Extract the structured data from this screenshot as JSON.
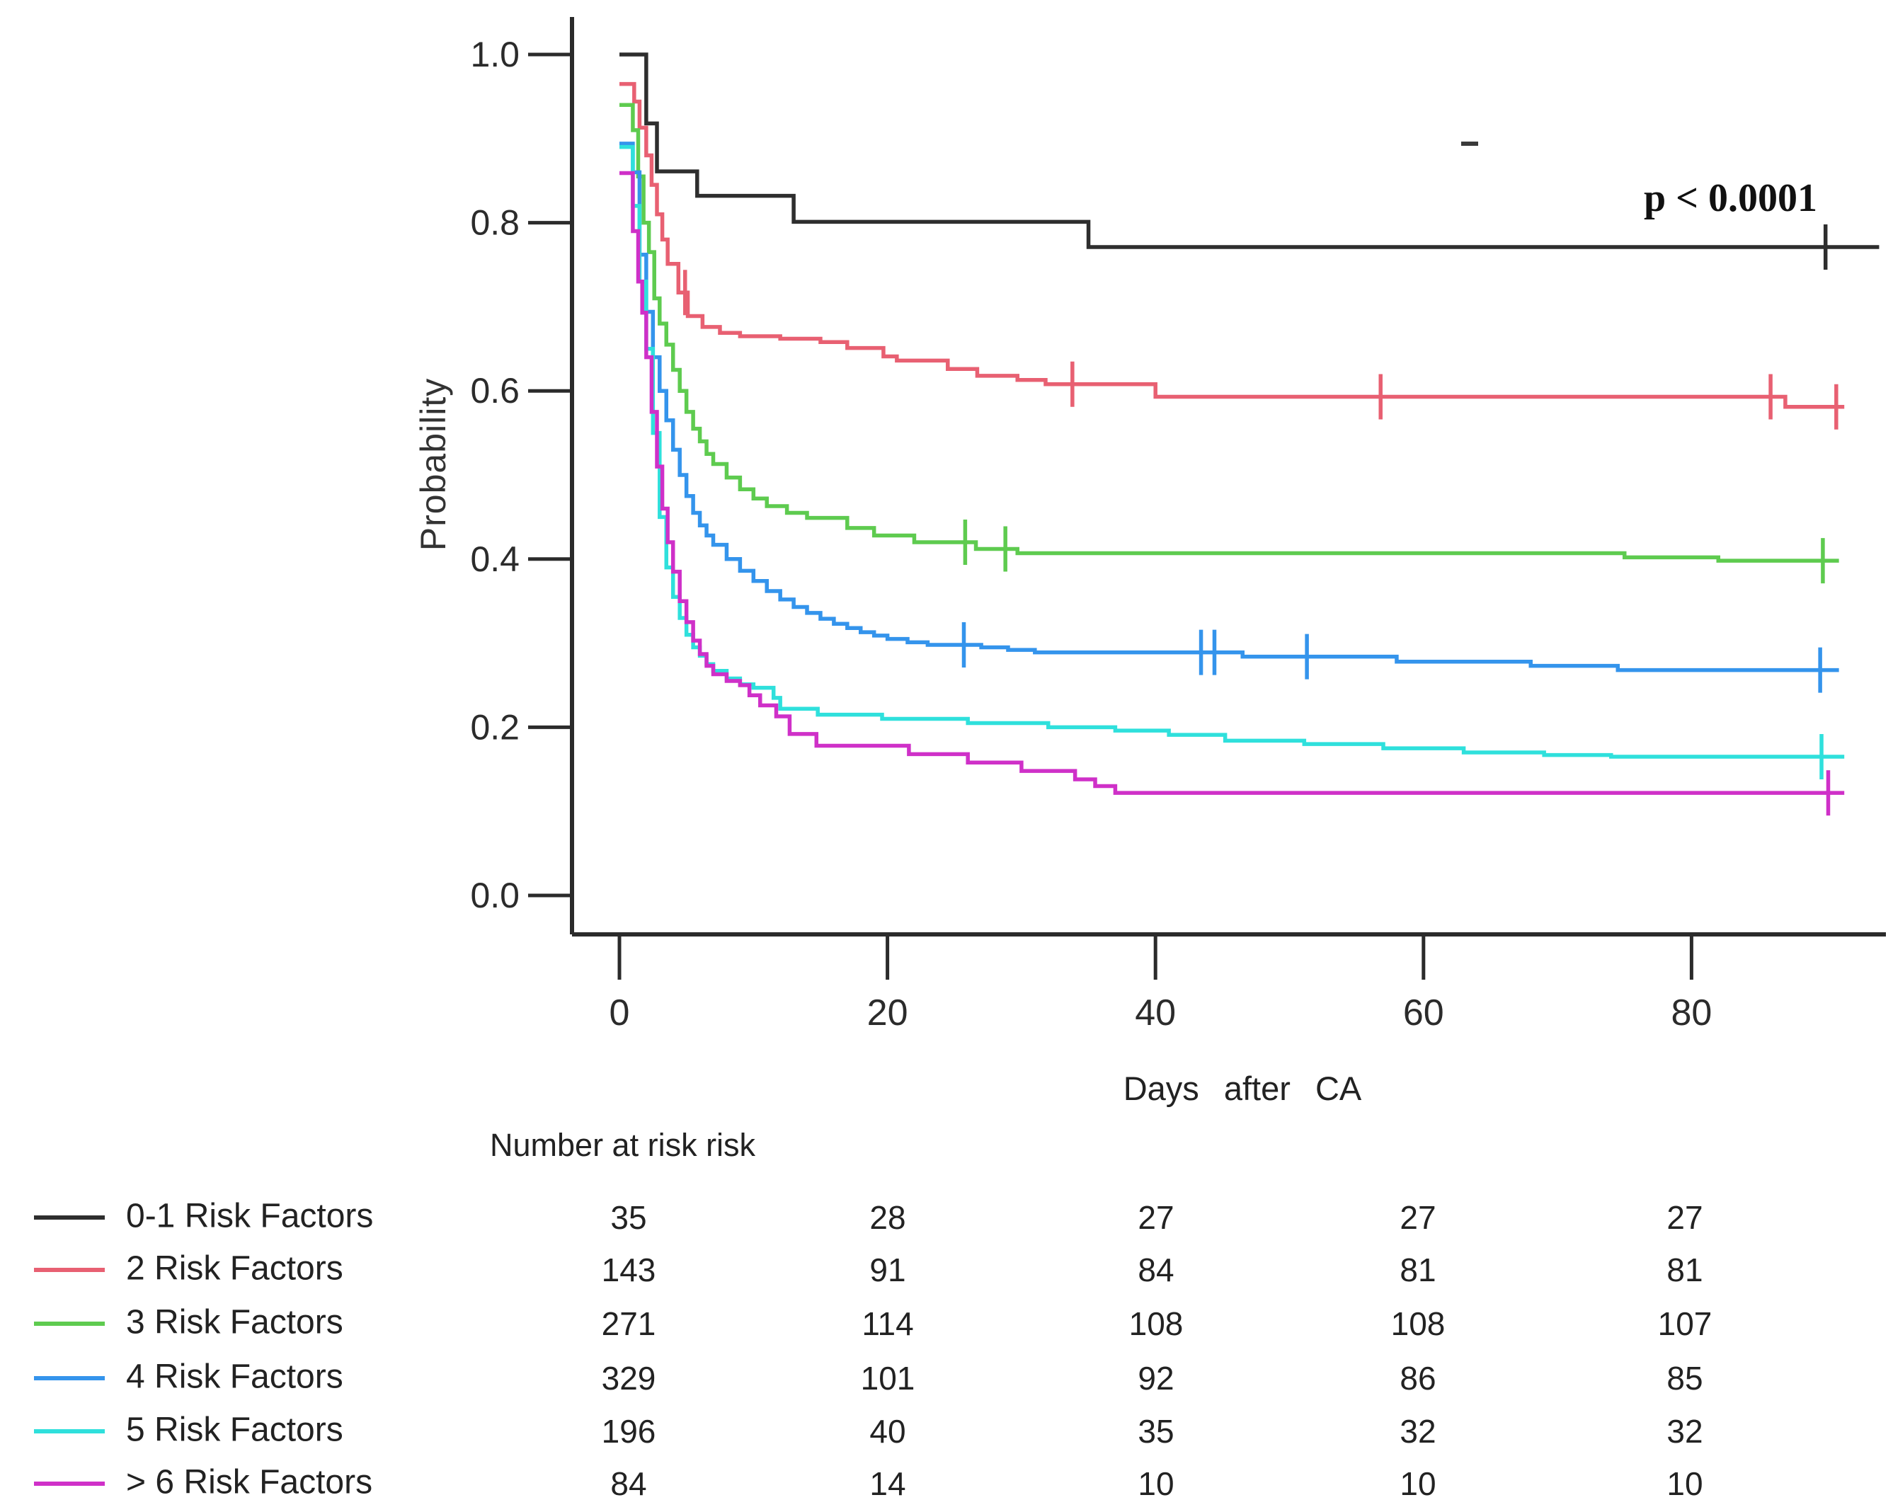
{
  "chart_data": {
    "type": "line",
    "subtype": "kaplan-meier-step-survival",
    "title": "",
    "xlabel": "Days  after  CA",
    "ylabel": "Probability",
    "annotation_p_value": "p < 0.0001",
    "xlim": [
      0,
      95
    ],
    "ylim": [
      0.0,
      1.0
    ],
    "xticks": [
      0,
      20,
      40,
      60,
      80
    ],
    "yticks": [
      0.0,
      0.2,
      0.4,
      0.6,
      0.8,
      1.0
    ],
    "grid": "off",
    "legend_position": "bottom-left",
    "series": [
      {
        "name": "0-1 Risk Factors",
        "color": "#2e2e2e",
        "end_day": 94,
        "points": [
          [
            0,
            1.0
          ],
          [
            2,
            0.918
          ],
          [
            2.8,
            0.861
          ],
          [
            5.8,
            0.832
          ],
          [
            13,
            0.801
          ],
          [
            35,
            0.771
          ]
        ],
        "censors": [
          [
            90,
            0.771
          ]
        ]
      },
      {
        "name": "2 Risk Factors",
        "color": "#e86072",
        "end_day": 91.4,
        "points": [
          [
            0,
            0.965
          ],
          [
            1.1,
            0.944
          ],
          [
            1.5,
            0.913
          ],
          [
            2,
            0.88
          ],
          [
            2.4,
            0.845
          ],
          [
            2.8,
            0.81
          ],
          [
            3.2,
            0.78
          ],
          [
            3.6,
            0.751
          ],
          [
            4.4,
            0.717
          ],
          [
            5.1,
            0.689
          ],
          [
            6.2,
            0.676
          ],
          [
            7.5,
            0.669
          ],
          [
            9,
            0.665
          ],
          [
            12,
            0.662
          ],
          [
            15,
            0.658
          ],
          [
            17,
            0.651
          ],
          [
            19.7,
            0.641
          ],
          [
            20.7,
            0.636
          ],
          [
            24.5,
            0.626
          ],
          [
            26.7,
            0.618
          ],
          [
            29.7,
            0.613
          ],
          [
            31.8,
            0.608
          ],
          [
            40,
            0.593
          ],
          [
            87,
            0.581
          ]
        ],
        "censors": [
          [
            4.9,
            0.717
          ],
          [
            33.8,
            0.608
          ],
          [
            56.8,
            0.593
          ],
          [
            85.9,
            0.593
          ],
          [
            90.8,
            0.581
          ]
        ]
      },
      {
        "name": "3 Risk Factors",
        "color": "#5ecb4f",
        "end_day": 91,
        "points": [
          [
            0,
            0.94
          ],
          [
            1,
            0.91
          ],
          [
            1.4,
            0.855
          ],
          [
            1.8,
            0.8
          ],
          [
            2.2,
            0.765
          ],
          [
            2.6,
            0.71
          ],
          [
            3,
            0.68
          ],
          [
            3.5,
            0.655
          ],
          [
            4,
            0.625
          ],
          [
            4.5,
            0.6
          ],
          [
            5,
            0.575
          ],
          [
            5.5,
            0.555
          ],
          [
            6,
            0.54
          ],
          [
            6.5,
            0.525
          ],
          [
            7,
            0.513
          ],
          [
            8,
            0.497
          ],
          [
            9,
            0.483
          ],
          [
            10,
            0.472
          ],
          [
            11,
            0.463
          ],
          [
            12.5,
            0.455
          ],
          [
            14,
            0.449
          ],
          [
            17,
            0.437
          ],
          [
            19,
            0.428
          ],
          [
            22,
            0.42
          ],
          [
            26.6,
            0.412
          ],
          [
            29.7,
            0.407
          ],
          [
            75,
            0.402
          ],
          [
            82,
            0.398
          ]
        ],
        "censors": [
          [
            25.8,
            0.42
          ],
          [
            28.8,
            0.412
          ],
          [
            89.8,
            0.398
          ]
        ]
      },
      {
        "name": "4 Risk Factors",
        "color": "#3494ec",
        "end_day": 91,
        "points": [
          [
            0,
            0.894
          ],
          [
            1,
            0.86
          ],
          [
            1.5,
            0.762
          ],
          [
            2,
            0.694
          ],
          [
            2.5,
            0.64
          ],
          [
            3,
            0.6
          ],
          [
            3.5,
            0.565
          ],
          [
            4,
            0.53
          ],
          [
            4.5,
            0.5
          ],
          [
            5,
            0.475
          ],
          [
            5.5,
            0.455
          ],
          [
            6,
            0.44
          ],
          [
            6.5,
            0.428
          ],
          [
            7,
            0.417
          ],
          [
            8,
            0.4
          ],
          [
            9,
            0.386
          ],
          [
            10,
            0.374
          ],
          [
            11,
            0.362
          ],
          [
            12,
            0.352
          ],
          [
            13,
            0.343
          ],
          [
            14,
            0.336
          ],
          [
            15,
            0.329
          ],
          [
            16,
            0.323
          ],
          [
            17,
            0.318
          ],
          [
            18,
            0.313
          ],
          [
            19,
            0.309
          ],
          [
            20,
            0.305
          ],
          [
            21.5,
            0.301
          ],
          [
            23,
            0.298
          ],
          [
            27,
            0.295
          ],
          [
            29,
            0.292
          ],
          [
            31,
            0.289
          ],
          [
            46.5,
            0.284
          ],
          [
            58,
            0.278
          ],
          [
            68,
            0.273
          ],
          [
            74.5,
            0.268
          ]
        ],
        "censors": [
          [
            25.7,
            0.298
          ],
          [
            43.4,
            0.289
          ],
          [
            44.4,
            0.289
          ],
          [
            51.3,
            0.284
          ],
          [
            89.6,
            0.268
          ]
        ]
      },
      {
        "name": "5 Risk Factors",
        "color": "#2fe0dc",
        "end_day": 91.4,
        "points": [
          [
            0,
            0.89
          ],
          [
            1,
            0.82
          ],
          [
            1.5,
            0.73
          ],
          [
            2,
            0.65
          ],
          [
            2.5,
            0.55
          ],
          [
            3,
            0.45
          ],
          [
            3.5,
            0.39
          ],
          [
            4,
            0.355
          ],
          [
            4.5,
            0.33
          ],
          [
            5,
            0.31
          ],
          [
            5.5,
            0.295
          ],
          [
            6,
            0.285
          ],
          [
            6.5,
            0.275
          ],
          [
            7,
            0.267
          ],
          [
            8,
            0.258
          ],
          [
            9,
            0.251
          ],
          [
            10,
            0.247
          ],
          [
            11.5,
            0.235
          ],
          [
            12,
            0.222
          ],
          [
            14.8,
            0.215
          ],
          [
            19.6,
            0.21
          ],
          [
            26,
            0.205
          ],
          [
            32,
            0.2
          ],
          [
            37,
            0.196
          ],
          [
            41,
            0.191
          ],
          [
            45.2,
            0.184
          ],
          [
            51.1,
            0.18
          ],
          [
            57,
            0.175
          ],
          [
            63,
            0.17
          ],
          [
            69,
            0.167
          ],
          [
            74,
            0.165
          ]
        ],
        "censors": [
          [
            89.7,
            0.165
          ]
        ]
      },
      {
        "name": "> 6 Risk Factors",
        "color": "#cf30c8",
        "end_day": 91.4,
        "points": [
          [
            0,
            0.859
          ],
          [
            1,
            0.79
          ],
          [
            1.4,
            0.73
          ],
          [
            1.7,
            0.693
          ],
          [
            2,
            0.64
          ],
          [
            2.4,
            0.575
          ],
          [
            2.8,
            0.51
          ],
          [
            3.2,
            0.46
          ],
          [
            3.6,
            0.42
          ],
          [
            4,
            0.385
          ],
          [
            4.5,
            0.35
          ],
          [
            5,
            0.325
          ],
          [
            5.5,
            0.303
          ],
          [
            6,
            0.287
          ],
          [
            6.5,
            0.273
          ],
          [
            7,
            0.263
          ],
          [
            8,
            0.255
          ],
          [
            9,
            0.25
          ],
          [
            9.7,
            0.238
          ],
          [
            10.5,
            0.226
          ],
          [
            11.7,
            0.213
          ],
          [
            12.7,
            0.192
          ],
          [
            14.7,
            0.178
          ],
          [
            21.6,
            0.168
          ],
          [
            26,
            0.158
          ],
          [
            30,
            0.148
          ],
          [
            34,
            0.138
          ],
          [
            35.5,
            0.13
          ],
          [
            37,
            0.122
          ]
        ],
        "censors": [
          [
            90.2,
            0.122
          ]
        ]
      }
    ],
    "risk_table": {
      "title": "Number at risk risk",
      "days": [
        0,
        20,
        40,
        60,
        80
      ],
      "rows": [
        {
          "name": "0-1 Risk Factors",
          "values": [
            35,
            28,
            27,
            27,
            27
          ]
        },
        {
          "name": "2 Risk Factors",
          "values": [
            143,
            91,
            84,
            81,
            81
          ]
        },
        {
          "name": "3 Risk Factors",
          "values": [
            271,
            114,
            108,
            108,
            107
          ]
        },
        {
          "name": "4 Risk Factors",
          "values": [
            329,
            101,
            92,
            86,
            85
          ]
        },
        {
          "name": "5 Risk Factors",
          "values": [
            196,
            40,
            35,
            32,
            32
          ]
        },
        {
          "name": "> 6 Risk Factors",
          "values": [
            84,
            14,
            10,
            10,
            10
          ]
        }
      ]
    }
  },
  "labels": {
    "x_axis_title": "Days  after  CA",
    "y_axis_title": "Probability",
    "p_value": "p < 0.0001",
    "risk_table_title": "Number at risk risk"
  }
}
